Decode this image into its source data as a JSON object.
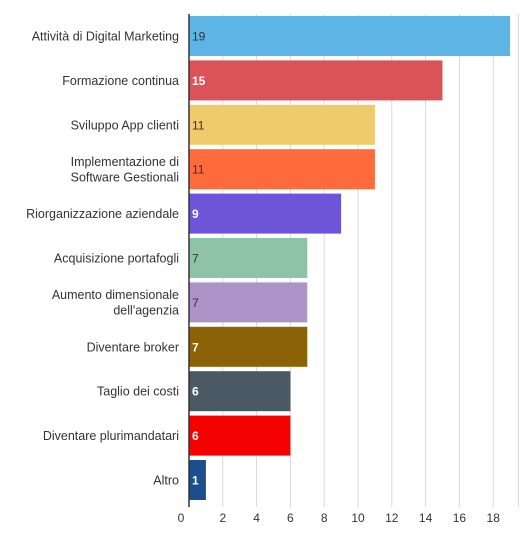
{
  "chart_data": {
    "type": "bar",
    "orientation": "horizontal",
    "title": "",
    "xlabel": "",
    "ylabel": "",
    "xlim": [
      0,
      19.5
    ],
    "xticks": [
      0,
      2,
      4,
      6,
      8,
      10,
      12,
      14,
      16,
      18
    ],
    "grid": true,
    "categories": [
      [
        "Attività di Digital Marketing"
      ],
      [
        "Formazione continua"
      ],
      [
        "Sviluppo App clienti"
      ],
      [
        "Implementazione di",
        "Software Gestionali"
      ],
      [
        "Riorganizzazione aziendale"
      ],
      [
        "Acquisizione portafogli"
      ],
      [
        "Aumento dimensionale",
        "dell'agenzia"
      ],
      [
        "Diventare broker"
      ],
      [
        "Taglio dei costi"
      ],
      [
        "Diventare plurimandatari"
      ],
      [
        "Altro"
      ]
    ],
    "values": [
      19,
      15,
      11,
      11,
      9,
      7,
      7,
      7,
      6,
      6,
      1
    ],
    "colors": [
      "#5DB5E5",
      "#DC5357",
      "#F0CB6B",
      "#FF6B3B",
      "#6C55D9",
      "#8FC3A6",
      "#AD94C8",
      "#8B6306",
      "#4B5965",
      "#F40202",
      "#1C4E8D"
    ],
    "label_colors": [
      "#333333",
      "#ffffff",
      "#333333",
      "#333333",
      "#ffffff",
      "#333333",
      "#333333",
      "#ffffff",
      "#ffffff",
      "#ffffff",
      "#ffffff"
    ]
  }
}
